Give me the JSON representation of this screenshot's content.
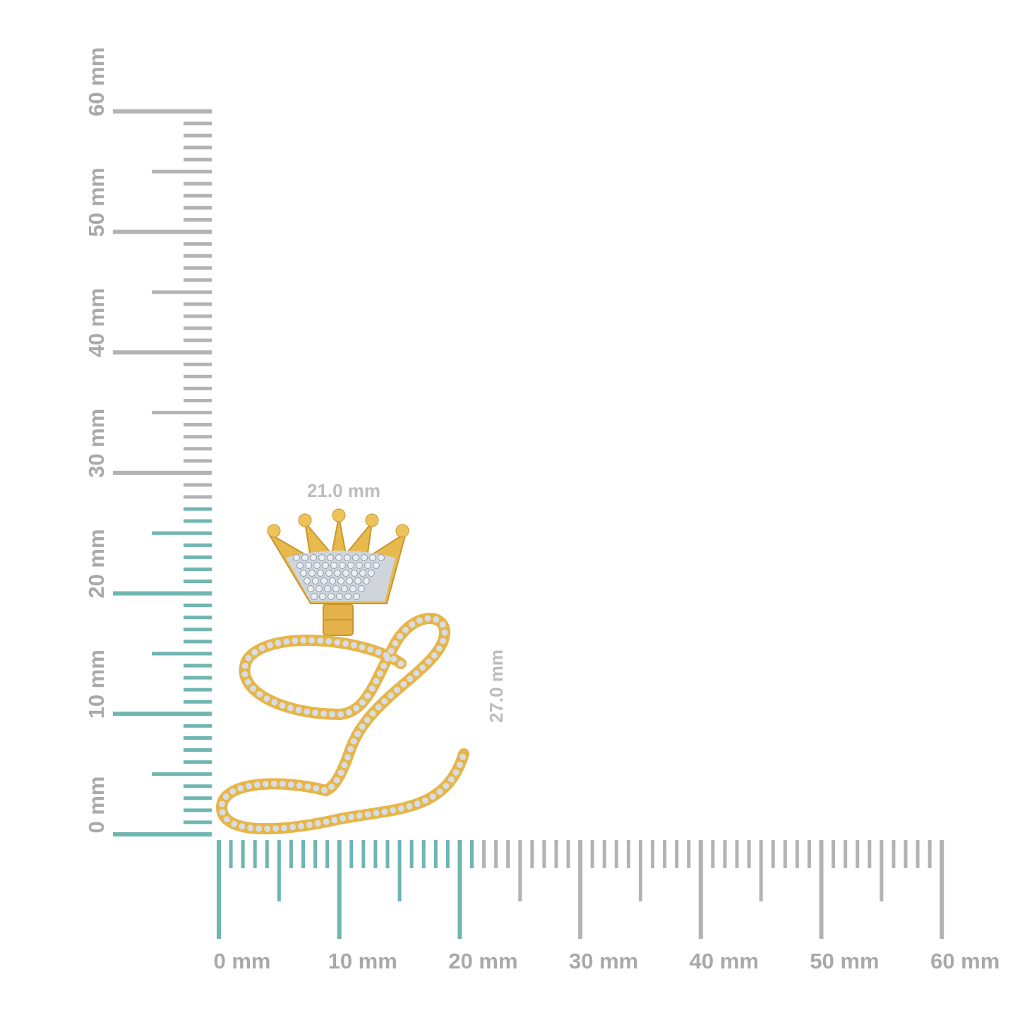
{
  "colors": {
    "highlight": "#6fb6b1",
    "ruler": "#b3b3b3",
    "label": "#a9a9a9",
    "gold": "#e8b94c",
    "diamond": "#d7dde3"
  },
  "horizontal_ruler": {
    "unit": "mm",
    "range": [
      0,
      60
    ],
    "highlight_to": 21,
    "labels": [
      "0 mm",
      "10 mm",
      "20 mm",
      "30 mm",
      "40 mm",
      "50 mm",
      "60 mm"
    ]
  },
  "vertical_ruler": {
    "unit": "mm",
    "range": [
      0,
      60
    ],
    "highlight_to": 27,
    "labels": [
      "0 mm",
      "10 mm",
      "20 mm",
      "30 mm",
      "40 mm",
      "50 mm",
      "60 mm"
    ]
  },
  "dimensions": {
    "width": "21.0 mm",
    "height": "27.0 mm"
  },
  "product": {
    "subject": "letter-L-crown-pendant"
  }
}
